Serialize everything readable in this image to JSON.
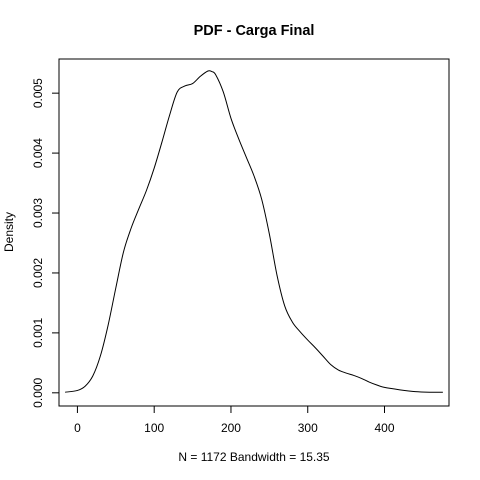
{
  "chart_data": {
    "type": "line",
    "title": "PDF - Carga Final",
    "xlabel": "N = 1172   Bandwidth = 15.35",
    "ylabel": "Density",
    "xlim": [
      -24,
      484
    ],
    "ylim": [
      -0.00022,
      0.00557
    ],
    "x_ticks": [
      0,
      100,
      200,
      300,
      400
    ],
    "y_ticks": [
      0.0,
      0.001,
      0.002,
      0.003,
      0.004,
      0.005
    ],
    "y_tick_labels": [
      "0.000",
      "0.001",
      "0.002",
      "0.003",
      "0.004",
      "0.005"
    ],
    "grid": false,
    "legend": "none",
    "series": [
      {
        "x": [
          -16,
          0,
          10,
          20,
          30,
          40,
          50,
          60,
          70,
          80,
          90,
          100,
          110,
          120,
          130,
          140,
          150,
          160,
          170,
          175,
          180,
          190,
          200,
          210,
          220,
          230,
          240,
          250,
          260,
          270,
          280,
          290,
          300,
          310,
          320,
          330,
          340,
          350,
          360,
          370,
          380,
          390,
          400,
          420,
          440,
          460,
          476
        ],
        "y": [
          1e-05,
          4e-05,
          0.00011,
          0.00028,
          0.00062,
          0.00113,
          0.00175,
          0.00235,
          0.00275,
          0.00307,
          0.00338,
          0.00375,
          0.00418,
          0.00463,
          0.00502,
          0.00512,
          0.00516,
          0.00528,
          0.00537,
          0.00536,
          0.00531,
          0.00502,
          0.00458,
          0.00424,
          0.00393,
          0.00362,
          0.00323,
          0.00265,
          0.00196,
          0.00145,
          0.00118,
          0.00102,
          0.00088,
          0.00075,
          0.00061,
          0.00047,
          0.00038,
          0.00033,
          0.00029,
          0.00024,
          0.00018,
          0.00013,
          9e-05,
          5e-05,
          2e-05,
          1e-05,
          1e-05
        ]
      }
    ]
  }
}
